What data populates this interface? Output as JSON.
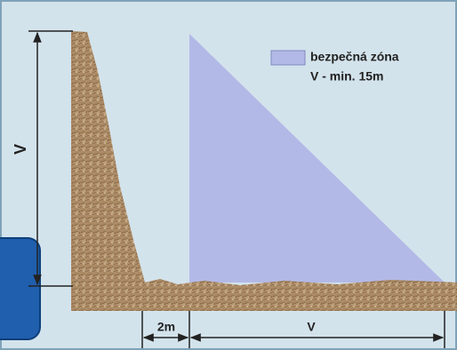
{
  "legend": {
    "label": "bezpečná zóna",
    "note": "V - min. 15m"
  },
  "dimensions": {
    "height": "V",
    "gap": "2m",
    "zone_width": "V"
  }
}
